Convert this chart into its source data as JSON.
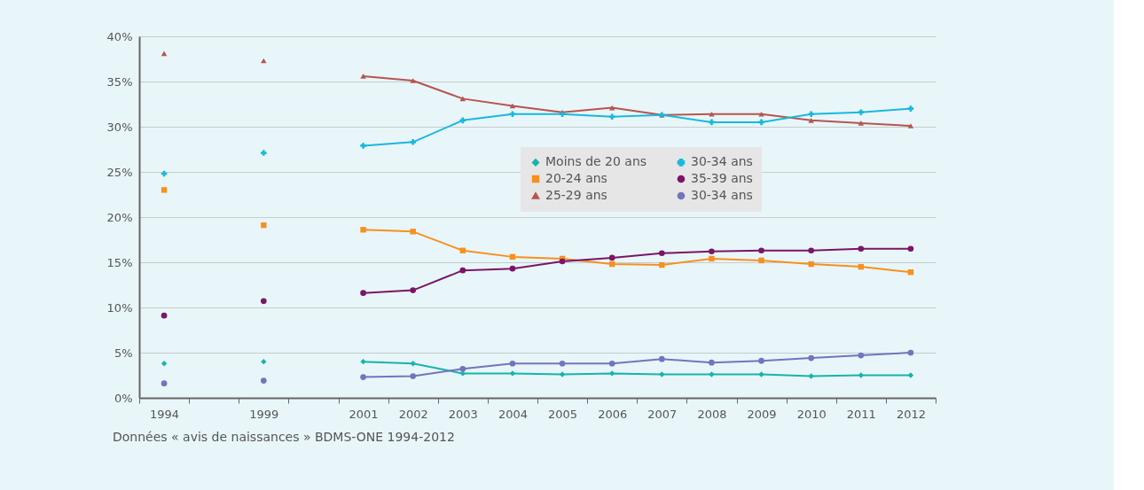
{
  "chart_data": {
    "type": "line",
    "categories": [
      "1994",
      null,
      "1999",
      null,
      "2001",
      "2002",
      "2003",
      "2004",
      "2005",
      "2006",
      "2007",
      "2008",
      "2009",
      "2010",
      "2011",
      "2012"
    ],
    "series": [
      {
        "name": "Moins de 20 ans",
        "color": "#17b3ad",
        "marker": "diamond",
        "values": [
          3.8,
          null,
          4.0,
          null,
          4.0,
          3.8,
          2.7,
          2.7,
          2.6,
          2.7,
          2.6,
          2.6,
          2.6,
          2.4,
          2.5,
          2.5
        ]
      },
      {
        "name": "20-24 ans",
        "color": "#f7901e",
        "marker": "square",
        "values": [
          23.0,
          null,
          19.1,
          null,
          18.6,
          18.4,
          16.3,
          15.6,
          15.4,
          14.8,
          14.7,
          15.4,
          15.2,
          14.8,
          14.5,
          13.9
        ]
      },
      {
        "name": "25-29 ans",
        "color": "#b85450",
        "marker": "triangle",
        "values": [
          38.1,
          null,
          37.3,
          null,
          35.6,
          35.1,
          33.1,
          32.3,
          31.6,
          32.1,
          31.3,
          31.4,
          31.4,
          30.7,
          30.4,
          30.1
        ]
      },
      {
        "name": "30-34 ans",
        "color": "#1ab8dc",
        "marker": "cross",
        "values": [
          24.8,
          null,
          27.1,
          null,
          27.9,
          28.3,
          30.7,
          31.4,
          31.4,
          31.1,
          31.3,
          30.5,
          30.5,
          31.4,
          31.6,
          32.0
        ]
      },
      {
        "name": "35-39 ans",
        "color": "#7b1566",
        "marker": "circle",
        "values": [
          9.1,
          null,
          10.7,
          null,
          11.6,
          11.9,
          14.1,
          14.3,
          15.1,
          15.5,
          16.0,
          16.2,
          16.3,
          16.3,
          16.5,
          16.5
        ]
      },
      {
        "name": "30-34 ans",
        "color": "#7474bc",
        "marker": "circle",
        "values": [
          1.6,
          null,
          1.9,
          null,
          2.3,
          2.4,
          3.2,
          3.8,
          3.8,
          3.8,
          4.3,
          3.9,
          4.1,
          4.4,
          4.7,
          5.0
        ]
      }
    ],
    "ylim": [
      0,
      40
    ],
    "yticks": [
      {
        "value": 0,
        "label": "0%"
      },
      {
        "value": 5,
        "label": "5%"
      },
      {
        "value": 10,
        "label": "10%"
      },
      {
        "value": 15,
        "label": "15%"
      },
      {
        "value": 20,
        "label": "20%"
      },
      {
        "value": 25,
        "label": "25%"
      },
      {
        "value": 30,
        "label": "30%"
      },
      {
        "value": 35,
        "label": "35%"
      },
      {
        "value": 40,
        "label": "40%"
      }
    ],
    "grid": "y",
    "legend": "top right",
    "annotations": [
      "Données « avis de naissances » BDMS-ONE 1994-2012"
    ]
  }
}
